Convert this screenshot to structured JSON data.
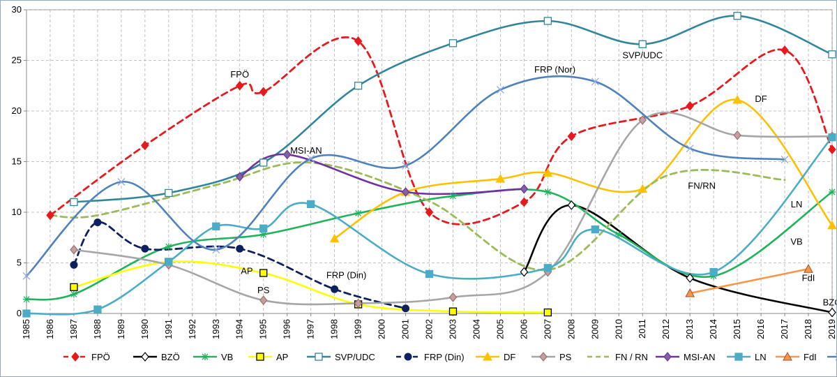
{
  "chart_data": {
    "type": "line",
    "title": "",
    "xlabel": "",
    "ylabel": "",
    "xlim": [
      1985,
      2019
    ],
    "ylim": [
      0,
      30
    ],
    "y_ticks": [
      0,
      5,
      10,
      15,
      20,
      25,
      30
    ],
    "x_ticks": [
      1985,
      1986,
      1987,
      1988,
      1989,
      1990,
      1991,
      1992,
      1993,
      1994,
      1995,
      1996,
      1997,
      1998,
      1999,
      2000,
      2001,
      2002,
      2003,
      2004,
      2005,
      2006,
      2007,
      2008,
      2009,
      2010,
      2011,
      2012,
      2013,
      2014,
      2015,
      2016,
      2017,
      2018,
      2019
    ],
    "grid": "dashed vertical and horizontal",
    "legend_position": "bottom",
    "series": [
      {
        "name": "FPÖ",
        "color": "#e8191d",
        "dash": "dashed",
        "marker": "diamond",
        "fill": "#e8191d",
        "points": [
          [
            1986,
            9.7
          ],
          [
            1990,
            16.6
          ],
          [
            1994,
            22.5
          ],
          [
            1995,
            21.9
          ],
          [
            1999,
            26.9
          ],
          [
            2002,
            10.0
          ],
          [
            2006,
            11.0
          ],
          [
            2008,
            17.5
          ],
          [
            2013,
            20.5
          ],
          [
            2017,
            26.0
          ],
          [
            2019,
            16.2
          ]
        ]
      },
      {
        "name": "BZÖ",
        "color": "#000000",
        "dash": "solid",
        "marker": "diamond",
        "fill": "#ffffff",
        "points": [
          [
            2006,
            4.1
          ],
          [
            2008,
            10.7
          ],
          [
            2013,
            3.5
          ],
          [
            2019,
            0.1
          ]
        ]
      },
      {
        "name": "VB",
        "color": "#1fb35a",
        "dash": "solid",
        "marker": "star",
        "fill": "none",
        "points": [
          [
            1985,
            1.4
          ],
          [
            1987,
            1.9
          ],
          [
            1991,
            6.6
          ],
          [
            1995,
            7.8
          ],
          [
            1999,
            9.9
          ],
          [
            2003,
            11.6
          ],
          [
            2007,
            12.0
          ],
          [
            2010,
            7.8
          ],
          [
            2014,
            3.7
          ],
          [
            2019,
            12.0
          ]
        ]
      },
      {
        "name": "AP",
        "color": "#ffff00",
        "dash": "solid",
        "marker": "square",
        "fill": "#ffff00",
        "points": [
          [
            1987,
            2.6
          ],
          [
            1991,
            5.1
          ],
          [
            1995,
            4.0
          ],
          [
            1999,
            0.9
          ],
          [
            2003,
            0.2
          ],
          [
            2007,
            0.1
          ]
        ]
      },
      {
        "name": "SVP/UDC",
        "color": "#31869b",
        "dash": "solid",
        "marker": "square",
        "fill": "#ffffff",
        "points": [
          [
            1987,
            11.0
          ],
          [
            1991,
            11.9
          ],
          [
            1995,
            14.9
          ],
          [
            1999,
            22.5
          ],
          [
            2003,
            26.7
          ],
          [
            2007,
            28.9
          ],
          [
            2011,
            26.6
          ],
          [
            2015,
            29.4
          ],
          [
            2019,
            25.6
          ]
        ]
      },
      {
        "name": "FRP (Din)",
        "color": "#0f2060",
        "dash": "dashed",
        "marker": "circle",
        "fill": "#0f2060",
        "points": [
          [
            1987,
            4.8
          ],
          [
            1988,
            9.0
          ],
          [
            1990,
            6.4
          ],
          [
            1994,
            6.4
          ],
          [
            1998,
            2.4
          ],
          [
            2001,
            0.5
          ]
        ]
      },
      {
        "name": "DF",
        "color": "#ffc000",
        "dash": "solid",
        "marker": "triangle",
        "fill": "#ffc000",
        "points": [
          [
            1998,
            7.4
          ],
          [
            2001,
            12.0
          ],
          [
            2005,
            13.3
          ],
          [
            2007,
            13.9
          ],
          [
            2011,
            12.3
          ],
          [
            2015,
            21.1
          ],
          [
            2019,
            8.7
          ]
        ]
      },
      {
        "name": "PS",
        "color": "#a6a6a6",
        "dash": "solid",
        "marker": "diamond",
        "fill": "#c0a0a0",
        "points": [
          [
            1987,
            6.3
          ],
          [
            1991,
            4.8
          ],
          [
            1995,
            1.3
          ],
          [
            1999,
            1.0
          ],
          [
            2003,
            1.6
          ],
          [
            2007,
            4.1
          ],
          [
            2011,
            19.1
          ],
          [
            2015,
            17.6
          ],
          [
            2019,
            17.5
          ]
        ]
      },
      {
        "name": "FN / RN",
        "color": "#9bbb59",
        "dash": "dashed",
        "marker": "none",
        "fill": "none",
        "points": [
          [
            1986,
            9.7
          ],
          [
            1988,
            9.7
          ],
          [
            1993,
            12.7
          ],
          [
            1997,
            14.9
          ],
          [
            2002,
            11.1
          ],
          [
            2007,
            4.3
          ],
          [
            2012,
            13.6
          ],
          [
            2017,
            13.2
          ]
        ]
      },
      {
        "name": "MSI-AN",
        "color": "#7030a0",
        "dash": "solid",
        "marker": "diamond",
        "fill": "#8064a2",
        "points": [
          [
            1994,
            13.5
          ],
          [
            1996,
            15.7
          ],
          [
            2001,
            12.0
          ],
          [
            2006,
            12.3
          ]
        ]
      },
      {
        "name": "LN",
        "color": "#4bacc6",
        "dash": "solid",
        "marker": "square",
        "fill": "#4bacc6",
        "points": [
          [
            1985,
            0.0
          ],
          [
            1988,
            0.4
          ],
          [
            1991,
            5.1
          ],
          [
            1993,
            8.6
          ],
          [
            1995,
            8.4
          ],
          [
            1997,
            10.8
          ],
          [
            2002,
            3.9
          ],
          [
            2007,
            4.5
          ],
          [
            2009,
            8.3
          ],
          [
            2014,
            4.1
          ],
          [
            2019,
            17.4
          ]
        ]
      },
      {
        "name": "FdI",
        "color": "#f79646",
        "dash": "solid",
        "marker": "triangle",
        "fill": "#f79646",
        "points": [
          [
            2013,
            2.0
          ],
          [
            2018,
            4.4
          ]
        ]
      },
      {
        "name": "FRP (Nor)",
        "color": "#4f81bd",
        "dash": "solid",
        "marker": "cross",
        "fill": "none",
        "points": [
          [
            1985,
            3.7
          ],
          [
            1989,
            13.0
          ],
          [
            1993,
            6.3
          ],
          [
            1997,
            15.3
          ],
          [
            2001,
            14.6
          ],
          [
            2005,
            22.1
          ],
          [
            2009,
            22.9
          ],
          [
            2013,
            16.3
          ],
          [
            2017,
            15.2
          ]
        ]
      }
    ],
    "annotations": [
      {
        "text": "FPÖ",
        "x": 1994,
        "y": 23.3
      },
      {
        "text": "MSI-AN",
        "x": 1996.8,
        "y": 15.8
      },
      {
        "text": "FRP (Nor)",
        "x": 2007.3,
        "y": 23.8
      },
      {
        "text": "SVP/UDC",
        "x": 2011,
        "y": 25.2
      },
      {
        "text": "DF",
        "x": 2016,
        "y": 20.9
      },
      {
        "text": "FN/RN",
        "x": 2013.5,
        "y": 12.3
      },
      {
        "text": "LN",
        "x": 2017.5,
        "y": 10.5
      },
      {
        "text": "VB",
        "x": 2017.5,
        "y": 6.8
      },
      {
        "text": "FdI",
        "x": 2018,
        "y": 3.2
      },
      {
        "text": "BZÖ",
        "x": 2019,
        "y": 0.8
      },
      {
        "text": "AP",
        "x": 1994.3,
        "y": 3.9
      },
      {
        "text": "PS",
        "x": 1995,
        "y": 2.0
      },
      {
        "text": "FRP (Din)",
        "x": 1998.5,
        "y": 3.5
      }
    ]
  }
}
